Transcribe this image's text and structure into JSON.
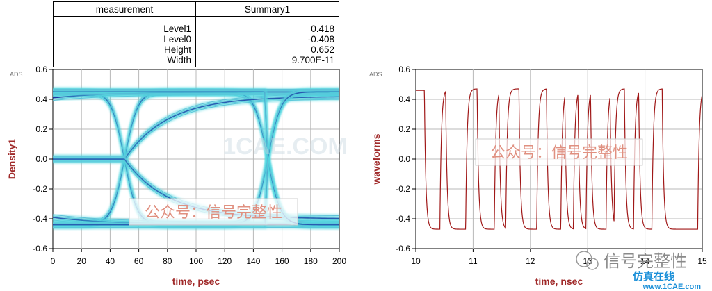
{
  "table": {
    "headers": [
      "measurement",
      "Summary1"
    ],
    "rows": [
      {
        "label": "Level1",
        "value": "0.418"
      },
      {
        "label": "Level0",
        "value": "-0.408"
      },
      {
        "label": "Height",
        "value": "0.652"
      },
      {
        "label": "Width",
        "value": "9.700E-11"
      }
    ]
  },
  "corner_tag": "ADS",
  "colors": {
    "eye": "#1a2fa0",
    "eye_glow": "#4dd6e0",
    "wave": "#a01818",
    "axis_label": "#a02a2a",
    "grid": "#b8b8b8"
  },
  "chart_data": [
    {
      "type": "line",
      "subtype": "eye_diagram",
      "xlabel": "time, psec",
      "ylabel": "Density1",
      "xlim": [
        0,
        200
      ],
      "ylim": [
        -0.6,
        0.6
      ],
      "xticks": [
        "0",
        "20",
        "40",
        "60",
        "80",
        "100",
        "120",
        "140",
        "160",
        "180",
        "200"
      ],
      "yticks": [
        "0.6",
        "0.4",
        "0.2",
        "0.0",
        "-0.2",
        "-0.4",
        "-0.6"
      ],
      "levels": {
        "high": 0.45,
        "low": -0.44
      },
      "crossings": [
        50,
        150
      ],
      "watermarks": [
        "1CAE.COM",
        "公众号：信号完整性"
      ],
      "grid": true
    },
    {
      "type": "line",
      "xlabel": "time, nsec",
      "ylabel": "waveforms",
      "xlim": [
        10,
        15
      ],
      "ylim": [
        -0.6,
        0.6
      ],
      "xticks": [
        "10",
        "11",
        "12",
        "13",
        "14",
        "15"
      ],
      "yticks": [
        "0.6",
        "0.4",
        "0.2",
        "0.0",
        "-0.2",
        "-0.4",
        "-0.6"
      ],
      "transitions_ns": [
        10.15,
        10.42,
        10.52,
        10.87,
        11.07,
        11.37,
        11.45,
        11.57,
        11.8,
        12.11,
        12.28,
        12.53,
        12.6,
        12.75,
        12.83,
        12.97,
        13.05,
        13.32,
        13.39,
        13.46,
        13.64,
        13.8,
        13.89,
        14.12,
        14.3,
        14.92,
        15.0
      ],
      "start_level": 0.46,
      "levels": {
        "high": 0.47,
        "low": -0.47
      },
      "watermarks": [
        "公众号：信号完整性"
      ],
      "grid": true
    }
  ],
  "footer": {
    "account": "信号完整性",
    "site_logo": "仿真在线",
    "site_url": "www.1CAE.com"
  }
}
